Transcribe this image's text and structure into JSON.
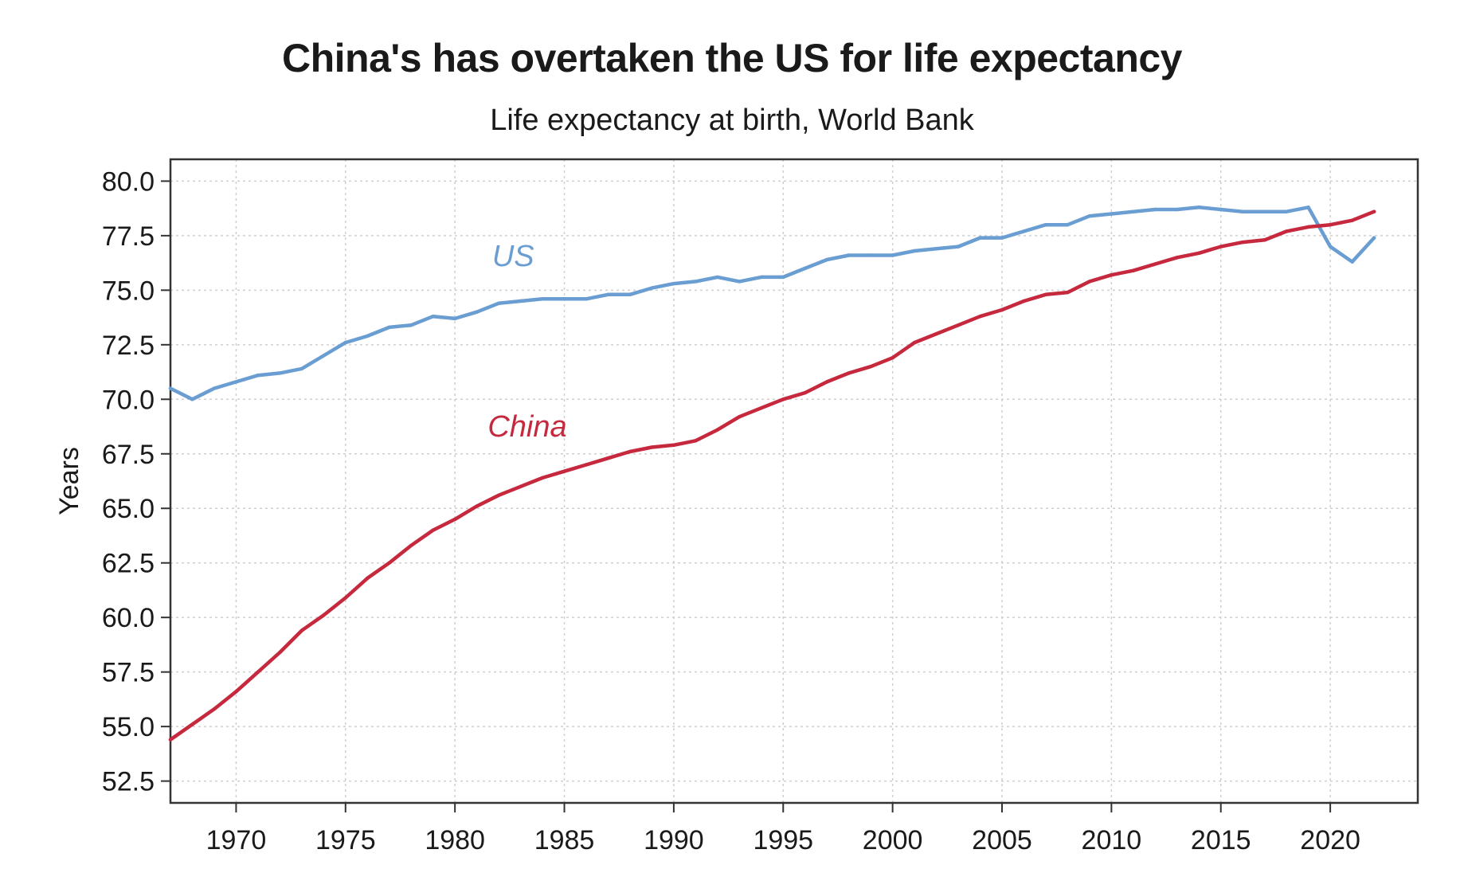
{
  "chart_data": {
    "type": "line",
    "title": "China's has overtaken the US for life expectancy",
    "subtitle": "Life expectancy at birth, World Bank",
    "xlabel": "",
    "ylabel": "Years",
    "xlim": [
      1967,
      2024
    ],
    "ylim": [
      51.5,
      81.0
    ],
    "x_ticks": [
      1970,
      1975,
      1980,
      1985,
      1990,
      1995,
      2000,
      2005,
      2010,
      2015,
      2020
    ],
    "x_tick_labels": [
      "1970",
      "1975",
      "1980",
      "1985",
      "1990",
      "1995",
      "2000",
      "2005",
      "2010",
      "2015",
      "2020"
    ],
    "y_ticks": [
      52.5,
      55.0,
      57.5,
      60.0,
      62.5,
      65.0,
      67.5,
      70.0,
      72.5,
      75.0,
      77.5,
      80.0
    ],
    "y_tick_labels": [
      "52.5",
      "55.0",
      "57.5",
      "60.0",
      "62.5",
      "65.0",
      "67.5",
      "70.0",
      "72.5",
      "75.0",
      "77.5",
      "80.0"
    ],
    "grid": true,
    "x": [
      1967,
      1968,
      1969,
      1970,
      1971,
      1972,
      1973,
      1974,
      1975,
      1976,
      1977,
      1978,
      1979,
      1980,
      1981,
      1982,
      1983,
      1984,
      1985,
      1986,
      1987,
      1988,
      1989,
      1990,
      1991,
      1992,
      1993,
      1994,
      1995,
      1996,
      1997,
      1998,
      1999,
      2000,
      2001,
      2002,
      2003,
      2004,
      2005,
      2006,
      2007,
      2008,
      2009,
      2010,
      2011,
      2012,
      2013,
      2014,
      2015,
      2016,
      2017,
      2018,
      2019,
      2020,
      2021,
      2022
    ],
    "series": [
      {
        "name": "US",
        "label": "US",
        "color": "#6a9ed3",
        "label_x": 1970.5,
        "label_y": 76.1,
        "values": [
          70.5,
          70.0,
          70.5,
          70.8,
          71.1,
          71.2,
          71.4,
          72.0,
          72.6,
          72.9,
          73.3,
          73.4,
          73.8,
          73.7,
          74.0,
          74.4,
          74.5,
          74.6,
          74.6,
          74.6,
          74.8,
          74.8,
          75.1,
          75.3,
          75.4,
          75.6,
          75.4,
          75.6,
          75.6,
          76.0,
          76.4,
          76.6,
          76.6,
          76.6,
          76.8,
          76.9,
          77.0,
          77.4,
          77.4,
          77.7,
          78.0,
          78.0,
          78.4,
          78.5,
          78.6,
          78.7,
          78.7,
          78.8,
          78.7,
          78.6,
          78.6,
          78.6,
          78.8,
          77.0,
          76.3,
          77.4
        ]
      },
      {
        "name": "China",
        "label": "China",
        "color": "#c6283d",
        "label_x": 1970.3,
        "label_y": 68.3,
        "values": [
          54.4,
          55.1,
          55.8,
          56.6,
          57.5,
          58.4,
          59.4,
          60.1,
          60.9,
          61.8,
          62.5,
          63.3,
          64.0,
          64.5,
          65.1,
          65.6,
          66.0,
          66.4,
          66.7,
          67.0,
          67.3,
          67.6,
          67.8,
          67.9,
          68.1,
          68.6,
          69.2,
          69.6,
          70.0,
          70.3,
          70.8,
          71.2,
          71.5,
          71.9,
          72.6,
          73.0,
          73.4,
          73.8,
          74.1,
          74.5,
          74.8,
          74.9,
          75.4,
          75.7,
          75.9,
          76.2,
          76.5,
          76.7,
          77.0,
          77.2,
          77.3,
          77.7,
          77.9,
          78.0,
          78.2,
          78.6
        ]
      }
    ]
  }
}
